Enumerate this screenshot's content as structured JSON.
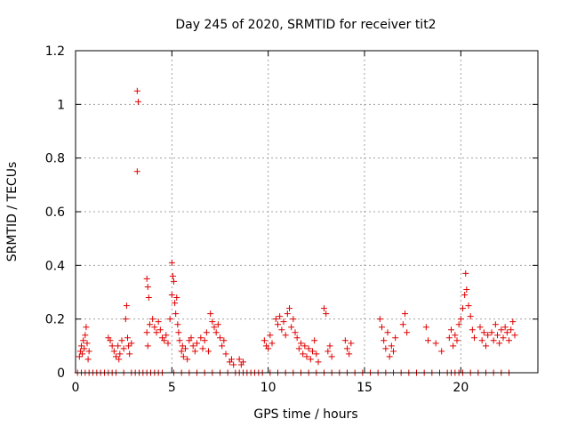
{
  "chart_data": {
    "type": "scatter",
    "title": "Day 245 of 2020, SRMTID for receiver tit2",
    "xlabel": "GPS time / hours",
    "ylabel": "SRMTID / TECUs",
    "xlim": [
      0,
      24
    ],
    "ylim": [
      0,
      1.2
    ],
    "x_ticks": [
      0,
      5,
      10,
      15,
      20
    ],
    "x_tick_labels": [
      "0",
      "5",
      "10",
      "15",
      "20"
    ],
    "y_ticks": [
      0,
      0.2,
      0.4,
      0.6,
      0.8,
      1.0,
      1.2
    ],
    "y_tick_labels": [
      "0",
      "0.2",
      "0.4",
      "0.6",
      "0.8",
      "1",
      "1.2"
    ],
    "grid": true,
    "marker": "+",
    "marker_color": "#e00000",
    "series": [
      {
        "name": "SRMTID",
        "points": [
          [
            0.2,
            0.06
          ],
          [
            0.25,
            0.08
          ],
          [
            0.3,
            0.1
          ],
          [
            0.35,
            0.07
          ],
          [
            0.4,
            0.12
          ],
          [
            0.45,
            0.09
          ],
          [
            0.5,
            0.14
          ],
          [
            0.55,
            0.17
          ],
          [
            0.6,
            0.11
          ],
          [
            0.65,
            0.05
          ],
          [
            0.7,
            0.08
          ],
          [
            1.7,
            0.13
          ],
          [
            1.8,
            0.12
          ],
          [
            1.9,
            0.1
          ],
          [
            2.0,
            0.08
          ],
          [
            2.1,
            0.06
          ],
          [
            2.2,
            0.1
          ],
          [
            2.25,
            0.05
          ],
          [
            2.3,
            0.07
          ],
          [
            2.4,
            0.12
          ],
          [
            2.5,
            0.09
          ],
          [
            2.6,
            0.2
          ],
          [
            2.65,
            0.25
          ],
          [
            2.7,
            0.13
          ],
          [
            2.75,
            0.1
          ],
          [
            2.8,
            0.07
          ],
          [
            2.9,
            0.11
          ],
          [
            3.2,
            1.05
          ],
          [
            3.25,
            1.01
          ],
          [
            3.2,
            0.75
          ],
          [
            3.7,
            0.35
          ],
          [
            3.75,
            0.32
          ],
          [
            3.8,
            0.28
          ],
          [
            3.7,
            0.15
          ],
          [
            3.75,
            0.1
          ],
          [
            3.85,
            0.18
          ],
          [
            4.0,
            0.2
          ],
          [
            4.1,
            0.17
          ],
          [
            4.2,
            0.15
          ],
          [
            4.3,
            0.19
          ],
          [
            4.4,
            0.16
          ],
          [
            4.5,
            0.13
          ],
          [
            4.6,
            0.12
          ],
          [
            4.7,
            0.14
          ],
          [
            4.8,
            0.11
          ],
          [
            4.9,
            0.2
          ],
          [
            5.0,
            0.41
          ],
          [
            5.05,
            0.36
          ],
          [
            5.1,
            0.34
          ],
          [
            5.0,
            0.29
          ],
          [
            5.15,
            0.26
          ],
          [
            5.2,
            0.22
          ],
          [
            5.25,
            0.28
          ],
          [
            5.3,
            0.18
          ],
          [
            5.35,
            0.15
          ],
          [
            5.4,
            0.12
          ],
          [
            5.5,
            0.08
          ],
          [
            5.55,
            0.1
          ],
          [
            5.6,
            0.06
          ],
          [
            5.7,
            0.09
          ],
          [
            5.8,
            0.05
          ],
          [
            5.9,
            0.12
          ],
          [
            6.0,
            0.13
          ],
          [
            6.1,
            0.1
          ],
          [
            6.2,
            0.08
          ],
          [
            6.3,
            0.11
          ],
          [
            6.5,
            0.13
          ],
          [
            6.6,
            0.09
          ],
          [
            6.7,
            0.12
          ],
          [
            6.8,
            0.15
          ],
          [
            6.9,
            0.08
          ],
          [
            7.0,
            0.22
          ],
          [
            7.1,
            0.19
          ],
          [
            7.2,
            0.17
          ],
          [
            7.3,
            0.15
          ],
          [
            7.4,
            0.18
          ],
          [
            7.5,
            0.13
          ],
          [
            7.6,
            0.1
          ],
          [
            7.7,
            0.12
          ],
          [
            7.8,
            0.07
          ],
          [
            8.0,
            0.04
          ],
          [
            8.1,
            0.05
          ],
          [
            8.2,
            0.03
          ],
          [
            8.5,
            0.05
          ],
          [
            8.6,
            0.03
          ],
          [
            8.7,
            0.04
          ],
          [
            9.8,
            0.12
          ],
          [
            9.9,
            0.1
          ],
          [
            10.0,
            0.09
          ],
          [
            10.1,
            0.14
          ],
          [
            10.2,
            0.11
          ],
          [
            10.4,
            0.2
          ],
          [
            10.5,
            0.18
          ],
          [
            10.6,
            0.21
          ],
          [
            10.7,
            0.16
          ],
          [
            10.8,
            0.19
          ],
          [
            10.9,
            0.14
          ],
          [
            11.0,
            0.22
          ],
          [
            11.1,
            0.24
          ],
          [
            11.2,
            0.17
          ],
          [
            11.3,
            0.2
          ],
          [
            11.4,
            0.15
          ],
          [
            11.5,
            0.13
          ],
          [
            11.6,
            0.09
          ],
          [
            11.7,
            0.11
          ],
          [
            11.8,
            0.07
          ],
          [
            11.9,
            0.1
          ],
          [
            12.0,
            0.06
          ],
          [
            12.1,
            0.09
          ],
          [
            12.2,
            0.05
          ],
          [
            12.3,
            0.08
          ],
          [
            12.4,
            0.12
          ],
          [
            12.5,
            0.07
          ],
          [
            12.6,
            0.04
          ],
          [
            12.9,
            0.24
          ],
          [
            13.0,
            0.22
          ],
          [
            13.1,
            0.08
          ],
          [
            13.2,
            0.1
          ],
          [
            13.3,
            0.06
          ],
          [
            14.0,
            0.12
          ],
          [
            14.1,
            0.09
          ],
          [
            14.2,
            0.07
          ],
          [
            14.3,
            0.11
          ],
          [
            15.8,
            0.2
          ],
          [
            15.9,
            0.17
          ],
          [
            16.0,
            0.12
          ],
          [
            16.1,
            0.09
          ],
          [
            16.2,
            0.15
          ],
          [
            16.3,
            0.06
          ],
          [
            16.4,
            0.1
          ],
          [
            16.5,
            0.08
          ],
          [
            16.6,
            0.13
          ],
          [
            17.0,
            0.18
          ],
          [
            17.1,
            0.22
          ],
          [
            17.2,
            0.15
          ],
          [
            18.2,
            0.17
          ],
          [
            18.3,
            0.12
          ],
          [
            18.7,
            0.11
          ],
          [
            19.0,
            0.08
          ],
          [
            19.4,
            0.13
          ],
          [
            19.5,
            0.16
          ],
          [
            19.6,
            0.1
          ],
          [
            19.7,
            0.14
          ],
          [
            19.8,
            0.12
          ],
          [
            19.9,
            0.18
          ],
          [
            20.0,
            0.2
          ],
          [
            20.1,
            0.24
          ],
          [
            20.2,
            0.29
          ],
          [
            20.25,
            0.37
          ],
          [
            20.3,
            0.31
          ],
          [
            20.4,
            0.25
          ],
          [
            20.5,
            0.21
          ],
          [
            20.6,
            0.16
          ],
          [
            20.7,
            0.13
          ],
          [
            21.0,
            0.17
          ],
          [
            21.1,
            0.12
          ],
          [
            21.2,
            0.15
          ],
          [
            21.3,
            0.1
          ],
          [
            21.4,
            0.14
          ],
          [
            21.6,
            0.15
          ],
          [
            21.7,
            0.12
          ],
          [
            21.8,
            0.18
          ],
          [
            21.9,
            0.14
          ],
          [
            22.0,
            0.11
          ],
          [
            22.1,
            0.16
          ],
          [
            22.2,
            0.13
          ],
          [
            22.3,
            0.17
          ],
          [
            22.4,
            0.15
          ],
          [
            22.5,
            0.12
          ],
          [
            22.6,
            0.16
          ],
          [
            22.7,
            0.19
          ],
          [
            22.8,
            0.14
          ]
        ],
        "zero_points_x": [
          0.1,
          0.3,
          0.5,
          0.7,
          0.9,
          1.1,
          1.3,
          1.5,
          1.7,
          1.9,
          2.1,
          2.5,
          2.9,
          3.1,
          3.3,
          3.5,
          3.7,
          3.9,
          4.1,
          4.3,
          4.5,
          5.1,
          5.5,
          5.9,
          6.3,
          6.7,
          7.1,
          7.5,
          7.9,
          8.3,
          8.5,
          8.7,
          8.9,
          9.1,
          9.3,
          9.5,
          9.7,
          10.1,
          10.5,
          10.9,
          11.3,
          11.7,
          12.1,
          12.5,
          12.9,
          13.3,
          13.7,
          14.1,
          14.5,
          14.9,
          15.3,
          15.7,
          16.1,
          16.5,
          16.9,
          17.3,
          17.7,
          18.1,
          18.5,
          18.9,
          19.3,
          19.5,
          19.7,
          19.9,
          20.1,
          20.5,
          20.9,
          21.3,
          21.7,
          22.1,
          22.5
        ]
      }
    ]
  }
}
